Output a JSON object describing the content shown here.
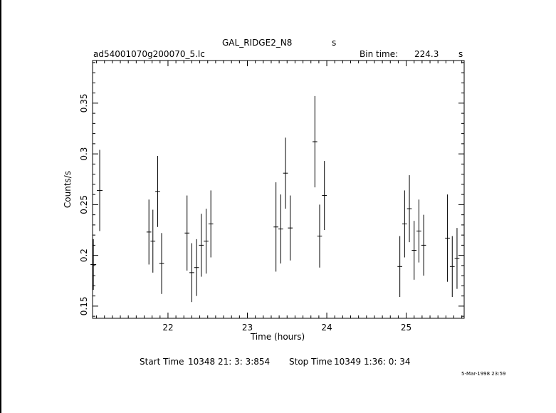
{
  "header": {
    "object_name": "GAL_RIDGE2_N8",
    "object_unit": "s",
    "file_name": "ad54001070g200070_5.lc",
    "bin_label": "Bin time:",
    "bin_value": "224.3",
    "bin_unit": "s"
  },
  "footer": {
    "start_label": "Start Time",
    "start_value": "10348 21: 3: 3:854",
    "stop_label": "Stop Time",
    "stop_value": "10349  1:36: 0: 34",
    "stamp": "5-Mar-1998 23:59"
  },
  "chart_data": {
    "type": "scatter",
    "title": "GAL_RIDGE2_N8",
    "xlabel": "Time (hours)",
    "ylabel": "Counts/s",
    "xlim": [
      21.05,
      25.73
    ],
    "ylim": [
      0.138,
      0.392
    ],
    "xticks": [
      22,
      23,
      24,
      25
    ],
    "xtick_labels": [
      "22",
      "23",
      "24",
      "25"
    ],
    "yticks": [
      0.15,
      0.2,
      0.25,
      0.3,
      0.35
    ],
    "ytick_labels": [
      "0.15",
      "0.2",
      "0.25",
      "0.3",
      "0.35"
    ],
    "grid": false,
    "series": [
      {
        "x": [
          21.06,
          21.14,
          21.76,
          21.81,
          21.87,
          21.92,
          22.24,
          22.3,
          22.36,
          22.42,
          22.48,
          22.54,
          23.36,
          23.42,
          23.48,
          23.54,
          23.85,
          23.91,
          23.97,
          24.92,
          24.98,
          25.04,
          25.1,
          25.16,
          25.22,
          25.52,
          25.58,
          25.64
        ],
        "y": [
          0.191,
          0.264,
          0.223,
          0.214,
          0.263,
          0.192,
          0.222,
          0.183,
          0.188,
          0.21,
          0.214,
          0.231,
          0.228,
          0.226,
          0.281,
          0.227,
          0.312,
          0.219,
          0.259,
          0.189,
          0.231,
          0.246,
          0.205,
          0.224,
          0.21,
          0.217,
          0.189,
          0.197
        ],
        "yerr": [
          0.025,
          0.04,
          0.032,
          0.031,
          0.035,
          0.03,
          0.037,
          0.029,
          0.028,
          0.031,
          0.032,
          0.033,
          0.044,
          0.034,
          0.035,
          0.032,
          0.045,
          0.031,
          0.034,
          0.03,
          0.033,
          0.033,
          0.029,
          0.031,
          0.03,
          0.043,
          0.03,
          0.03
        ],
        "xerr": [
          0.0,
          0.0,
          0.03,
          0.03,
          0.03,
          0.03,
          0.03,
          0.03,
          0.03,
          0.03,
          0.03,
          0.03,
          0.03,
          0.03,
          0.03,
          0.03,
          0.03,
          0.03,
          0.03,
          0.03,
          0.03,
          0.03,
          0.03,
          0.03,
          0.03,
          0.03,
          0.03,
          0.03
        ]
      }
    ]
  }
}
